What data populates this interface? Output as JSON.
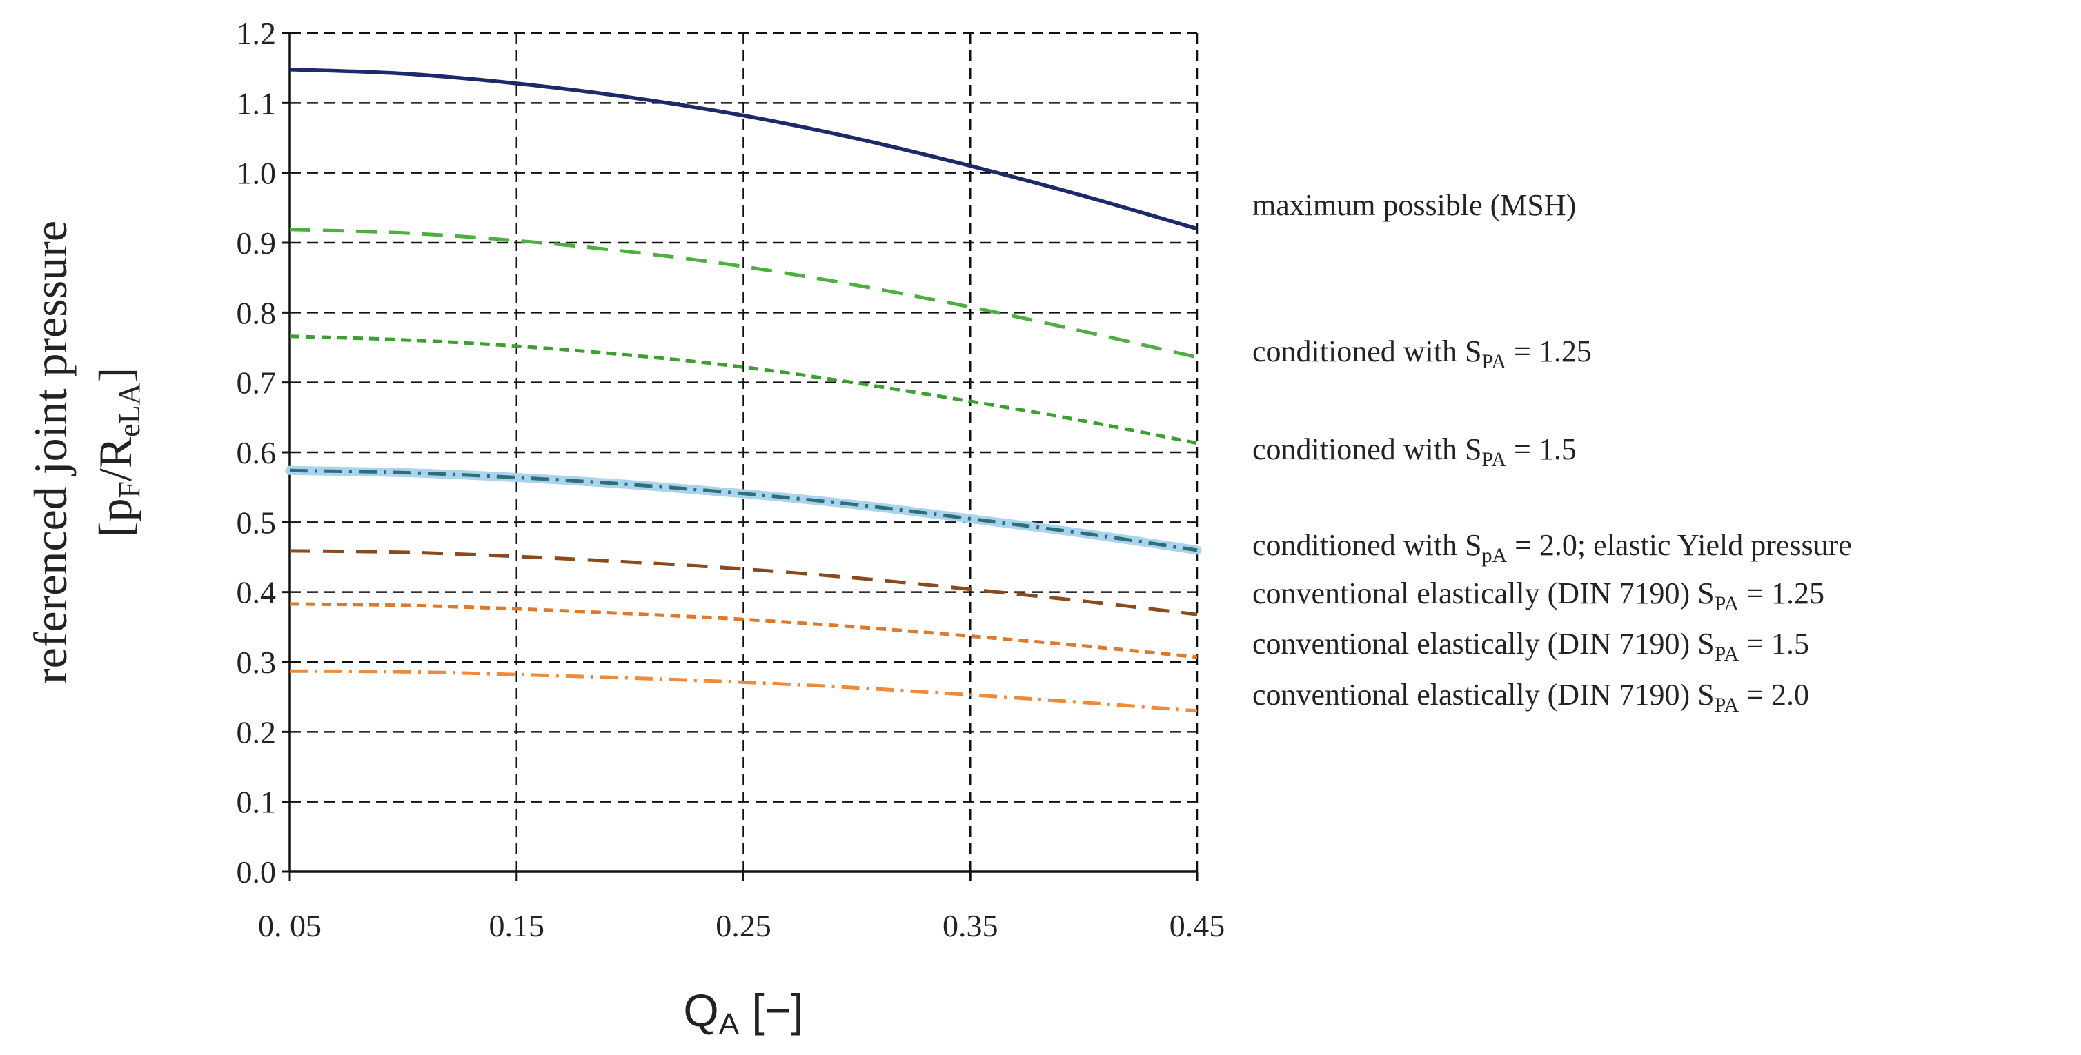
{
  "chart_data": {
    "type": "line",
    "x_axis": {
      "label_main": "Q",
      "label_sub": "A",
      "label_unit": " [−]",
      "min": 0.05,
      "max": 0.45,
      "ticks": [
        0.05,
        0.15,
        0.25,
        0.35,
        0.45
      ],
      "tick_labels": [
        "0. 05",
        "0.15",
        "0.25",
        "0.35",
        "0.45"
      ]
    },
    "y_axis": {
      "label_line1": "referenced joint pressure",
      "label_line2_a": "[p",
      "label_line2_sub1": "F",
      "label_line2_b": "/R",
      "label_line2_sub2": "eLA",
      "label_line2_c": "]",
      "min": 0.0,
      "max": 1.2,
      "ticks": [
        0.0,
        0.1,
        0.2,
        0.3,
        0.4,
        0.5,
        0.6,
        0.7,
        0.8,
        0.9,
        1.0,
        1.1,
        1.2
      ],
      "tick_labels": [
        "0.0",
        "0.1",
        "0.2",
        "0.3",
        "0.4",
        "0.5",
        "0.6",
        "0.7",
        "0.8",
        "0.9",
        "1.0",
        "1.1",
        "1.2"
      ]
    },
    "grid": true,
    "x": [
      0.05,
      0.1,
      0.15,
      0.2,
      0.25,
      0.3,
      0.35,
      0.4,
      0.45
    ],
    "series": [
      {
        "id": "msh",
        "name": "maximum possible  (MSH)",
        "legend": {
          "pre": "maximum possible  (MSH)",
          "sub": "",
          "post": ""
        },
        "color": "#1b2a6b",
        "dash": "solid",
        "values": [
          1.148,
          1.142,
          1.128,
          1.108,
          1.082,
          1.049,
          1.01,
          0.967,
          0.92
        ]
      },
      {
        "id": "cond125",
        "name": "conditioned with SPA = 1.25",
        "legend": {
          "pre": "conditioned with S",
          "sub": "PA",
          "post": " = 1.25"
        },
        "color": "#4caf3f",
        "dash": "longdash",
        "values": [
          0.919,
          0.914,
          0.903,
          0.887,
          0.866,
          0.839,
          0.808,
          0.773,
          0.736
        ]
      },
      {
        "id": "cond15",
        "name": "conditioned with SPA = 1.5",
        "legend": {
          "pre": "conditioned with S",
          "sub": "PA",
          "post": " = 1.5"
        },
        "color": "#3aa02e",
        "dash": "shortdash",
        "values": [
          0.766,
          0.761,
          0.752,
          0.739,
          0.722,
          0.699,
          0.673,
          0.645,
          0.613
        ]
      },
      {
        "id": "cond20",
        "name": "conditioned with SPA = 2.0; elastic Yield pressure",
        "legend": {
          "pre": "conditioned with S",
          "sub": "pA",
          "post": " = 2.0; elastic Yield pressure"
        },
        "color": "#2f6f78",
        "halo": "#a9d3ee",
        "dash": "dashdot",
        "values": [
          0.574,
          0.571,
          0.564,
          0.554,
          0.541,
          0.525,
          0.505,
          0.484,
          0.46
        ]
      },
      {
        "id": "conv125",
        "name": "conventional elastically (DIN 7190) SPA = 1.25",
        "legend": {
          "pre": "conventional elastically (DIN 7190) S",
          "sub": "PA",
          "post": " = 1.25"
        },
        "color": "#8b4a1c",
        "dash": "longdash",
        "values": [
          0.459,
          0.457,
          0.451,
          0.443,
          0.433,
          0.42,
          0.404,
          0.387,
          0.368
        ]
      },
      {
        "id": "conv15",
        "name": "conventional elastically (DIN 7190) SPA = 1.5",
        "legend": {
          "pre": "conventional elastically (DIN 7190) S",
          "sub": "PA",
          "post": " = 1.5"
        },
        "color": "#e0782a",
        "dash": "shortdash",
        "values": [
          0.383,
          0.381,
          0.376,
          0.369,
          0.361,
          0.35,
          0.337,
          0.323,
          0.307
        ]
      },
      {
        "id": "conv20",
        "name": "conventional elastically (DIN 7190) SPA = 2.0",
        "legend": {
          "pre": "conventional elastically (DIN 7190) S",
          "sub": "PA",
          "post": " = 2.0"
        },
        "color": "#ef8a3a",
        "dash": "dashdot",
        "values": [
          0.287,
          0.286,
          0.282,
          0.277,
          0.271,
          0.263,
          0.253,
          0.242,
          0.23
        ]
      }
    ]
  }
}
